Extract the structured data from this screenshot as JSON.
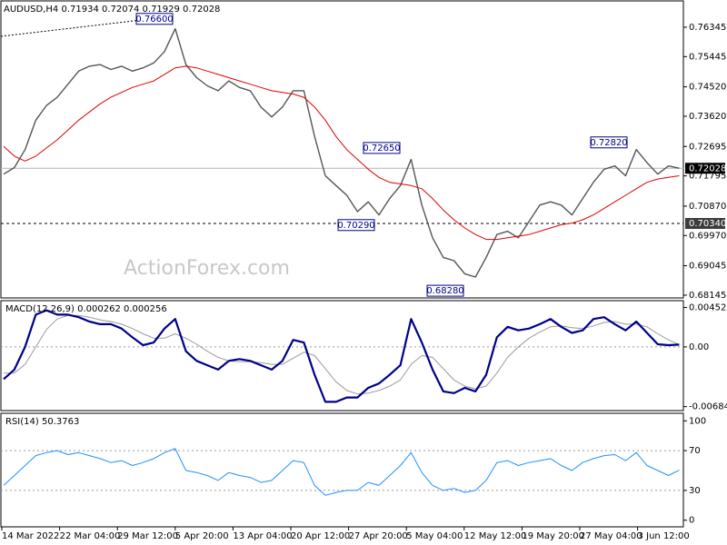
{
  "chart_data": [
    {
      "type": "line",
      "title": "AUDUSD,H4  0.71934 0.72074 0.71929 0.72028",
      "watermark": "ActionForex.com",
      "ylim": [
        0.6806,
        0.7715
      ],
      "yticks": [
        0.76345,
        0.75445,
        {
          "value": 0.7452,
          "label": "0.74520"
        },
        {
          "value": 0.7362,
          "label": "0.73620"
        },
        0.72695,
        0.71795,
        {
          "value": 0.7087,
          "label": "0.70870"
        },
        {
          "value": 0.6997,
          "label": "0.69970"
        },
        0.69045,
        0.68145
      ],
      "current_price": 0.72028,
      "level": {
        "value": 0.7034,
        "label": "0.70340"
      },
      "annotations": [
        {
          "value": 0.766,
          "label": "0.76600"
        },
        {
          "value": 0.7265,
          "label": "0.72650"
        },
        {
          "value": 0.7029,
          "label": "0.70290"
        },
        {
          "value": 0.6828,
          "label": "0.68280"
        },
        {
          "value": 0.7282,
          "label": "0.72820"
        }
      ],
      "series": [
        {
          "color": "#555555",
          "values": [
            0.7185,
            0.7205,
            0.726,
            0.735,
            0.7395,
            0.742,
            0.746,
            0.75,
            0.7515,
            0.752,
            0.7505,
            0.7515,
            0.75,
            0.751,
            0.7525,
            0.756,
            0.763,
            0.752,
            0.748,
            0.7455,
            0.744,
            0.747,
            0.745,
            0.744,
            0.739,
            0.736,
            0.739,
            0.744,
            0.744,
            0.73,
            0.718,
            0.715,
            0.712,
            0.707,
            0.71,
            0.706,
            0.711,
            0.715,
            0.723,
            0.709,
            0.699,
            0.693,
            0.692,
            0.688,
            0.687,
            0.693,
            0.7,
            0.701,
            0.699,
            0.704,
            0.709,
            0.71,
            0.709,
            0.706,
            0.711,
            0.716,
            0.72,
            0.721,
            0.718,
            0.726,
            0.722,
            0.7185,
            0.721,
            0.7203
          ]
        },
        {
          "color": "#e00000",
          "values": [
            0.727,
            0.724,
            0.7225,
            0.724,
            0.7265,
            0.729,
            0.732,
            0.735,
            0.7375,
            0.74,
            0.742,
            0.7435,
            0.745,
            0.746,
            0.747,
            0.749,
            0.751,
            0.7515,
            0.751,
            0.75,
            0.749,
            0.748,
            0.747,
            0.746,
            0.745,
            0.744,
            0.7435,
            0.743,
            0.742,
            0.739,
            0.735,
            0.73,
            0.726,
            0.723,
            0.72,
            0.7175,
            0.716,
            0.7155,
            0.715,
            0.714,
            0.711,
            0.7075,
            0.7045,
            0.702,
            0.7,
            0.6985,
            0.6985,
            0.699,
            0.6995,
            0.7,
            0.701,
            0.702,
            0.703,
            0.7035,
            0.7045,
            0.706,
            0.708,
            0.71,
            0.712,
            0.714,
            0.716,
            0.717,
            0.7175,
            0.718
          ]
        }
      ]
    },
    {
      "type": "line",
      "title": "MACD(12,26,9) 0.000262 0.000256",
      "ylim": [
        -0.0073,
        0.0053
      ],
      "yticks": [
        0.004522,
        {
          "value": 0,
          "label": "0.00"
        },
        -0.006848
      ],
      "level_lines": [
        0
      ],
      "series": [
        {
          "color": "#9a9a9a",
          "values": [
            -0.003,
            -0.003,
            -0.002,
            0.0,
            0.002,
            0.0032,
            0.0036,
            0.0036,
            0.0034,
            0.0031,
            0.0029,
            0.0026,
            0.0021,
            0.0015,
            0.001,
            0.001,
            0.0015,
            0.001,
            0.0003,
            -0.0005,
            -0.0012,
            -0.0016,
            -0.0017,
            -0.0017,
            -0.0018,
            -0.002,
            -0.002,
            -0.0013,
            -0.0006,
            -0.001,
            -0.0025,
            -0.004,
            -0.005,
            -0.0054,
            -0.0053,
            -0.005,
            -0.0045,
            -0.0038,
            -0.002,
            -0.001,
            -0.0012,
            -0.0025,
            -0.0038,
            -0.0045,
            -0.0048,
            -0.0045,
            -0.003,
            -0.0012,
            0.0,
            0.001,
            0.0017,
            0.0023,
            0.0024,
            0.0022,
            0.0021,
            0.0024,
            0.0028,
            0.0029,
            0.0026,
            0.0026,
            0.0023,
            0.0015,
            0.0008,
            0.000256
          ]
        },
        {
          "color": "#00008b",
          "values": [
            -0.0037,
            -0.0026,
            0.0,
            0.0037,
            0.0042,
            0.0037,
            0.0037,
            0.0034,
            0.0029,
            0.0026,
            0.0026,
            0.0021,
            0.0011,
            0.0002,
            0.0005,
            0.0021,
            0.0032,
            -0.0005,
            -0.0016,
            -0.0021,
            -0.0026,
            -0.0016,
            -0.0014,
            -0.0016,
            -0.0021,
            -0.0026,
            -0.0016,
            0.0008,
            0.0005,
            -0.0032,
            -0.0063,
            -0.0063,
            -0.0058,
            -0.0058,
            -0.0047,
            -0.0042,
            -0.0032,
            -0.0021,
            0.0032,
            0.0005,
            -0.0026,
            -0.0051,
            -0.0053,
            -0.0047,
            -0.0051,
            -0.0032,
            0.0011,
            0.0023,
            0.0019,
            0.0021,
            0.0026,
            0.0032,
            0.0023,
            0.0016,
            0.0019,
            0.0032,
            0.0034,
            0.0026,
            0.0019,
            0.0029,
            0.0016,
            0.0003,
            0.0002,
            0.000262
          ]
        }
      ]
    },
    {
      "type": "line",
      "title": "RSI(14) 50.3763",
      "ylim": [
        -6.7,
        107.6
      ],
      "yticks": [
        100,
        70,
        30,
        0
      ],
      "level_lines": [
        70,
        30
      ],
      "x_labels": [
        "14 Mar 2022",
        "22 Mar 04:00",
        "29 Mar 12:00",
        "5 Apr 20:00",
        "13 Apr 04:00",
        "20 Apr 12:00",
        "27 Apr 20:00",
        "5 May 04:00",
        "12 May 12:00",
        "19 May 20:00",
        "27 May 04:00",
        "3 Jun 12:00"
      ],
      "series": [
        {
          "color": "#1e90ff",
          "values": [
            35,
            45,
            55,
            65,
            68,
            70,
            66,
            68,
            65,
            62,
            58,
            60,
            55,
            58,
            62,
            68,
            72,
            50,
            48,
            45,
            40,
            48,
            45,
            43,
            38,
            40,
            50,
            60,
            58,
            35,
            25,
            28,
            30,
            30,
            38,
            35,
            45,
            55,
            68,
            48,
            35,
            30,
            32,
            28,
            30,
            40,
            58,
            60,
            55,
            58,
            60,
            62,
            55,
            50,
            58,
            62,
            65,
            66,
            60,
            68,
            55,
            50,
            45,
            50.3763
          ]
        }
      ]
    }
  ]
}
